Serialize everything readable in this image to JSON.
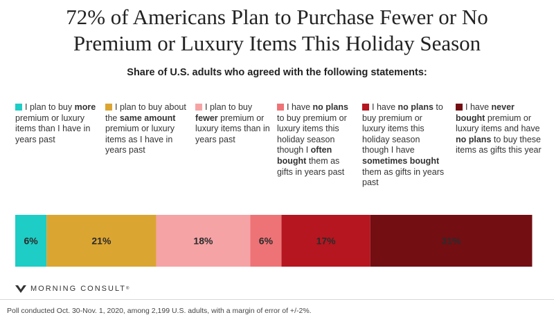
{
  "title_line1": "72% of Americans Plan to Purchase Fewer or No",
  "title_line2": "Premium or Luxury Items This Holiday Season",
  "subtitle": "Share of U.S. adults who agreed with the following statements:",
  "colors": {
    "more": "#1ecdc5",
    "same": "#dba532",
    "fewer": "#f5a3a5",
    "no_plans_often": "#ee7376",
    "no_plans_sometimes": "#b5161f",
    "never": "#730e13"
  },
  "legend": [
    {
      "key": "more",
      "segments": [
        {
          "t": "I plan to buy "
        },
        {
          "t": "more",
          "b": true
        },
        {
          "t": " premium or luxury items than I have in years past"
        }
      ]
    },
    {
      "key": "same",
      "segments": [
        {
          "t": "I plan to buy about the "
        },
        {
          "t": "same amount",
          "b": true
        },
        {
          "t": " premium or luxury items as I have in years past"
        }
      ]
    },
    {
      "key": "fewer",
      "segments": [
        {
          "t": "I plan to buy "
        },
        {
          "t": "fewer",
          "b": true
        },
        {
          "t": " premium or luxury items than in years past"
        }
      ]
    },
    {
      "key": "no_plans_often",
      "segments": [
        {
          "t": "I have "
        },
        {
          "t": "no plans",
          "b": true
        },
        {
          "t": " to buy premium or luxury items this holiday season though I "
        },
        {
          "t": "often bought",
          "b": true
        },
        {
          "t": " them as gifts in years past"
        }
      ]
    },
    {
      "key": "no_plans_sometimes",
      "segments": [
        {
          "t": "I have "
        },
        {
          "t": "no plans",
          "b": true
        },
        {
          "t": " to buy premium or luxury items this holiday season though I have "
        },
        {
          "t": "sometimes bought",
          "b": true
        },
        {
          "t": " them as gifts in years past"
        }
      ]
    },
    {
      "key": "never",
      "segments": [
        {
          "t": "I have "
        },
        {
          "t": "never bought",
          "b": true
        },
        {
          "t": " premium or luxury items and have "
        },
        {
          "t": "no plans",
          "b": true
        },
        {
          "t": " to buy these items as gifts this year"
        }
      ]
    }
  ],
  "chart_data": {
    "type": "bar",
    "orientation": "horizontal-stacked",
    "categories": [
      "more",
      "same",
      "fewer",
      "no_plans_often",
      "no_plans_sometimes",
      "never"
    ],
    "values": [
      6,
      21,
      18,
      6,
      17,
      31
    ],
    "labels": [
      "6%",
      "21%",
      "18%",
      "6%",
      "17%",
      "31%"
    ],
    "unit": "%",
    "xlim": [
      0,
      100
    ],
    "title": "72% of Americans Plan to Purchase Fewer or No Premium or Luxury Items This Holiday Season"
  },
  "logo_text": "MORNING CONSULT",
  "footnote": "Poll conducted Oct. 30-Nov. 1, 2020, among 2,199 U.S. adults, with a margin of error of +/-2%."
}
